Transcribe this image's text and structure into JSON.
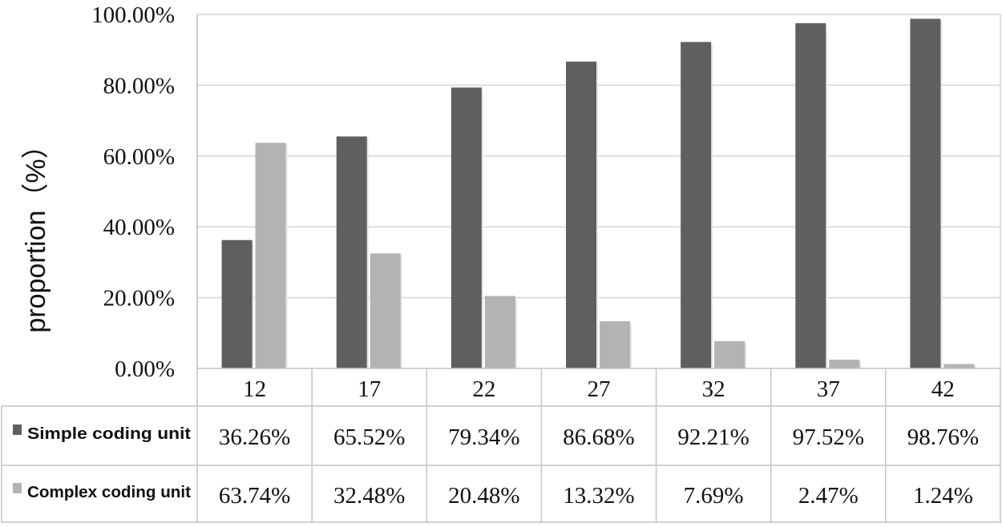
{
  "chart_data": {
    "type": "bar",
    "title": "",
    "xlabel": "",
    "ylabel": "proportion（%）",
    "categories": [
      "12",
      "17",
      "22",
      "27",
      "32",
      "37",
      "42"
    ],
    "ylim": [
      0,
      100
    ],
    "yticks": [
      "0.00%",
      "20.00%",
      "40.00%",
      "60.00%",
      "80.00%",
      "100.00%"
    ],
    "grid": true,
    "legend": "data-table-left",
    "series": [
      {
        "name": "Simple coding unit",
        "color": "#5f5f5f",
        "values": [
          36.26,
          65.52,
          79.34,
          86.68,
          92.21,
          97.52,
          98.76
        ],
        "labels": [
          "36.26%",
          "65.52%",
          "79.34%",
          "86.68%",
          "92.21%",
          "97.52%",
          "98.76%"
        ]
      },
      {
        "name": "Complex coding unit",
        "color": "#b3b3b3",
        "values": [
          63.74,
          32.48,
          20.48,
          13.32,
          7.69,
          2.47,
          1.24
        ],
        "labels": [
          "63.74%",
          "32.48%",
          "20.48%",
          "13.32%",
          "7.69%",
          "2.47%",
          "1.24%"
        ]
      }
    ]
  }
}
